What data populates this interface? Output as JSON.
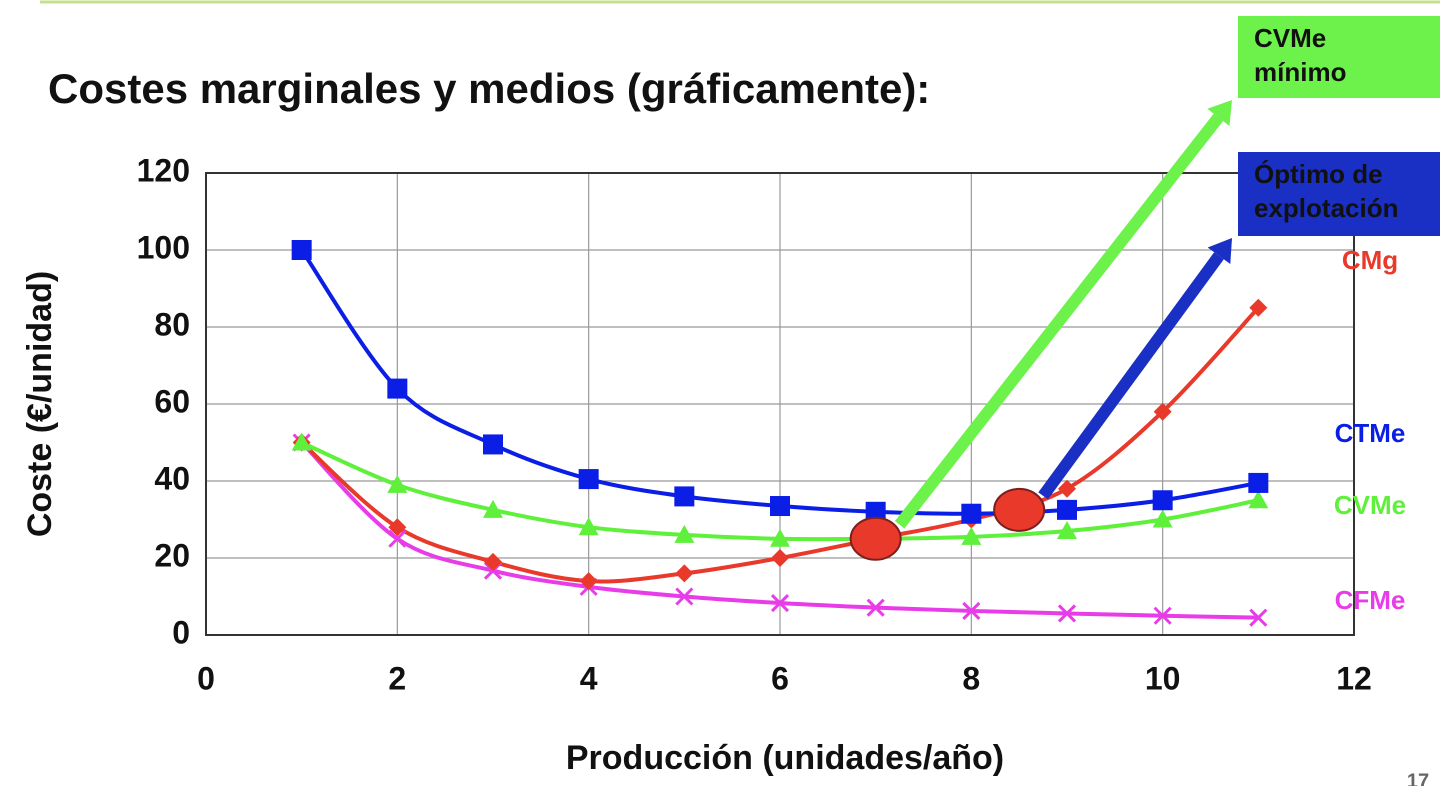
{
  "chart_data": {
    "type": "line",
    "title": "Costes marginales y medios (gráficamente):",
    "x_label": "Producción (unidades/año)",
    "y_label": "Coste (€/unidad)",
    "x": [
      1,
      2,
      3,
      4,
      5,
      6,
      7,
      8,
      9,
      10,
      11
    ],
    "series": [
      {
        "name": "CMg",
        "color": "#e8392a",
        "marker": "diamond",
        "values": [
          50,
          28,
          19,
          14,
          16,
          20,
          25,
          30,
          38,
          58,
          85
        ]
      },
      {
        "name": "CTMe",
        "color": "#0a1ee6",
        "marker": "square",
        "values": [
          100,
          64,
          49.5,
          40.5,
          36,
          33.5,
          32,
          31.5,
          32.5,
          35,
          39.5
        ]
      },
      {
        "name": "CVMe",
        "color": "#5ef03a",
        "marker": "triangle",
        "values": [
          50,
          39,
          32.5,
          28,
          26,
          25,
          25,
          25.5,
          27,
          30,
          35
        ]
      },
      {
        "name": "CFMe",
        "color": "#e83ce8",
        "marker": "x",
        "values": [
          50,
          25,
          16.7,
          12.5,
          10,
          8.3,
          7.1,
          6.25,
          5.6,
          5,
          4.5
        ]
      }
    ],
    "xlim": [
      0,
      12
    ],
    "xticks": [
      0,
      2,
      4,
      6,
      8,
      10,
      12
    ],
    "ylim": [
      0,
      120
    ],
    "yticks": [
      0,
      20,
      40,
      60,
      80,
      100,
      120
    ],
    "grid": true,
    "highlights": [
      {
        "x": 7,
        "y": 25,
        "label": [
          "CVMe",
          "mínimo"
        ],
        "box_color": "#6cf24a",
        "arrow_color": "#6cf24a"
      },
      {
        "x": 8.5,
        "y": 32.5,
        "label": [
          "Óptimo de",
          "explotación"
        ],
        "box_color": "#1a2fc4",
        "arrow_color": "#1a2fc4"
      }
    ],
    "page_number": "17"
  }
}
